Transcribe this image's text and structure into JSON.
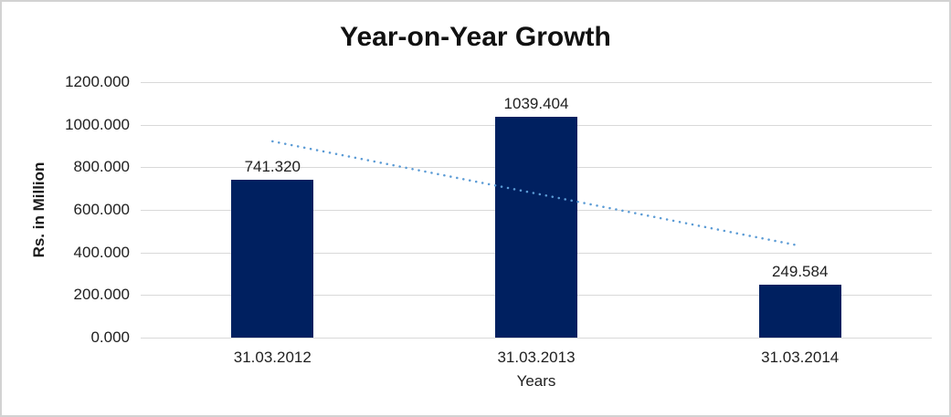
{
  "page": {
    "background": "#ffffff",
    "frame_border_color": "#d2d2d2"
  },
  "chart_data": {
    "type": "bar",
    "title": "Year-on-Year Growth",
    "xlabel": "Years",
    "ylabel": "Rs. in Million",
    "categories": [
      "31.03.2012",
      "31.03.2013",
      "31.03.2014"
    ],
    "values": [
      741.32,
      1039.404,
      249.584
    ],
    "value_labels": [
      "741.320",
      "1039.404",
      "249.584"
    ],
    "ylim": [
      0,
      1200
    ],
    "ytick_interval": 200,
    "ytick_labels": [
      "1200.000",
      "1000.000",
      "800.000",
      "600.000",
      "400.000",
      "200.000",
      "0.000"
    ],
    "grid": true,
    "gridline_color": "#d9d9d9",
    "bar_color": "#002060",
    "legend": "none",
    "trendline": {
      "kind": "linear",
      "style": "dotted",
      "color": "#5B9BD5",
      "values_at_first_and_last_category": [
        922,
        431
      ]
    }
  }
}
